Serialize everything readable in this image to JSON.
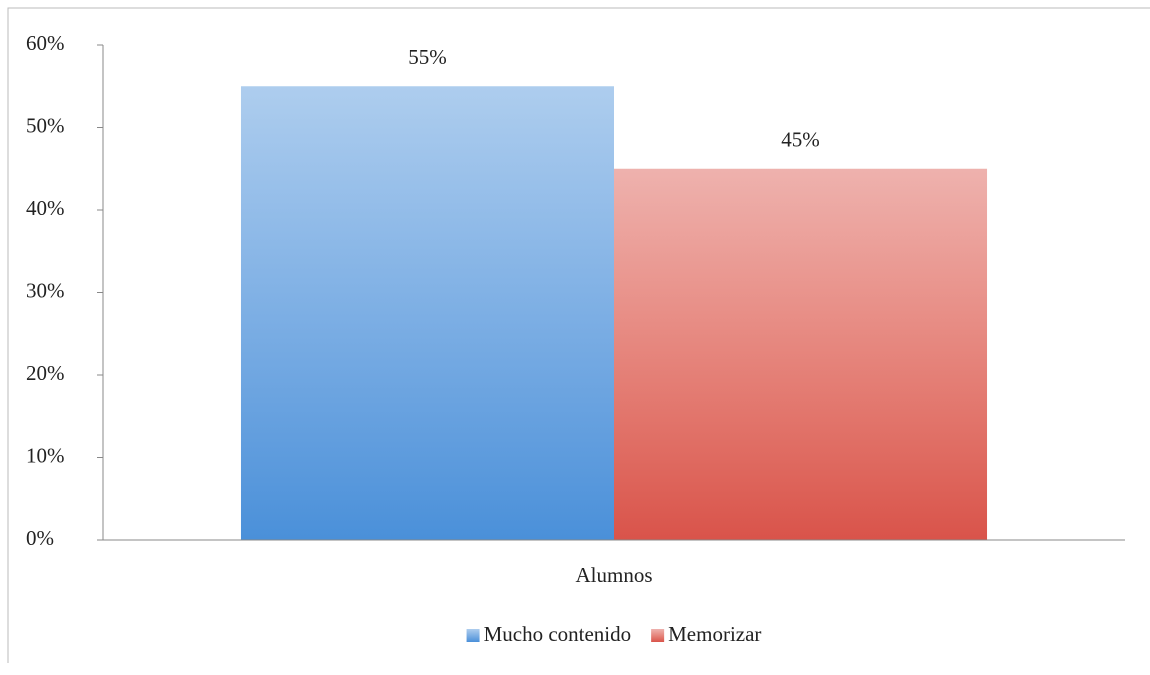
{
  "chart_data": {
    "type": "bar",
    "categories": [
      "Alumnos"
    ],
    "series": [
      {
        "name": "Mucho contenido",
        "color": "#4a90d9",
        "values": [
          55
        ],
        "value_labels": [
          "55%"
        ]
      },
      {
        "name": "Memorizar",
        "color": "#d9534a",
        "values": [
          45
        ],
        "value_labels": [
          "45%"
        ]
      }
    ],
    "ylim": [
      0,
      60
    ],
    "yticks": [
      {
        "value": 0,
        "label": "0%"
      },
      {
        "value": 10,
        "label": "10%"
      },
      {
        "value": 20,
        "label": "20%"
      },
      {
        "value": 30,
        "label": "30%"
      },
      {
        "value": 40,
        "label": "40%"
      },
      {
        "value": 50,
        "label": "50%"
      },
      {
        "value": 60,
        "label": "60%"
      }
    ],
    "grid": false,
    "legend": "bottom"
  }
}
